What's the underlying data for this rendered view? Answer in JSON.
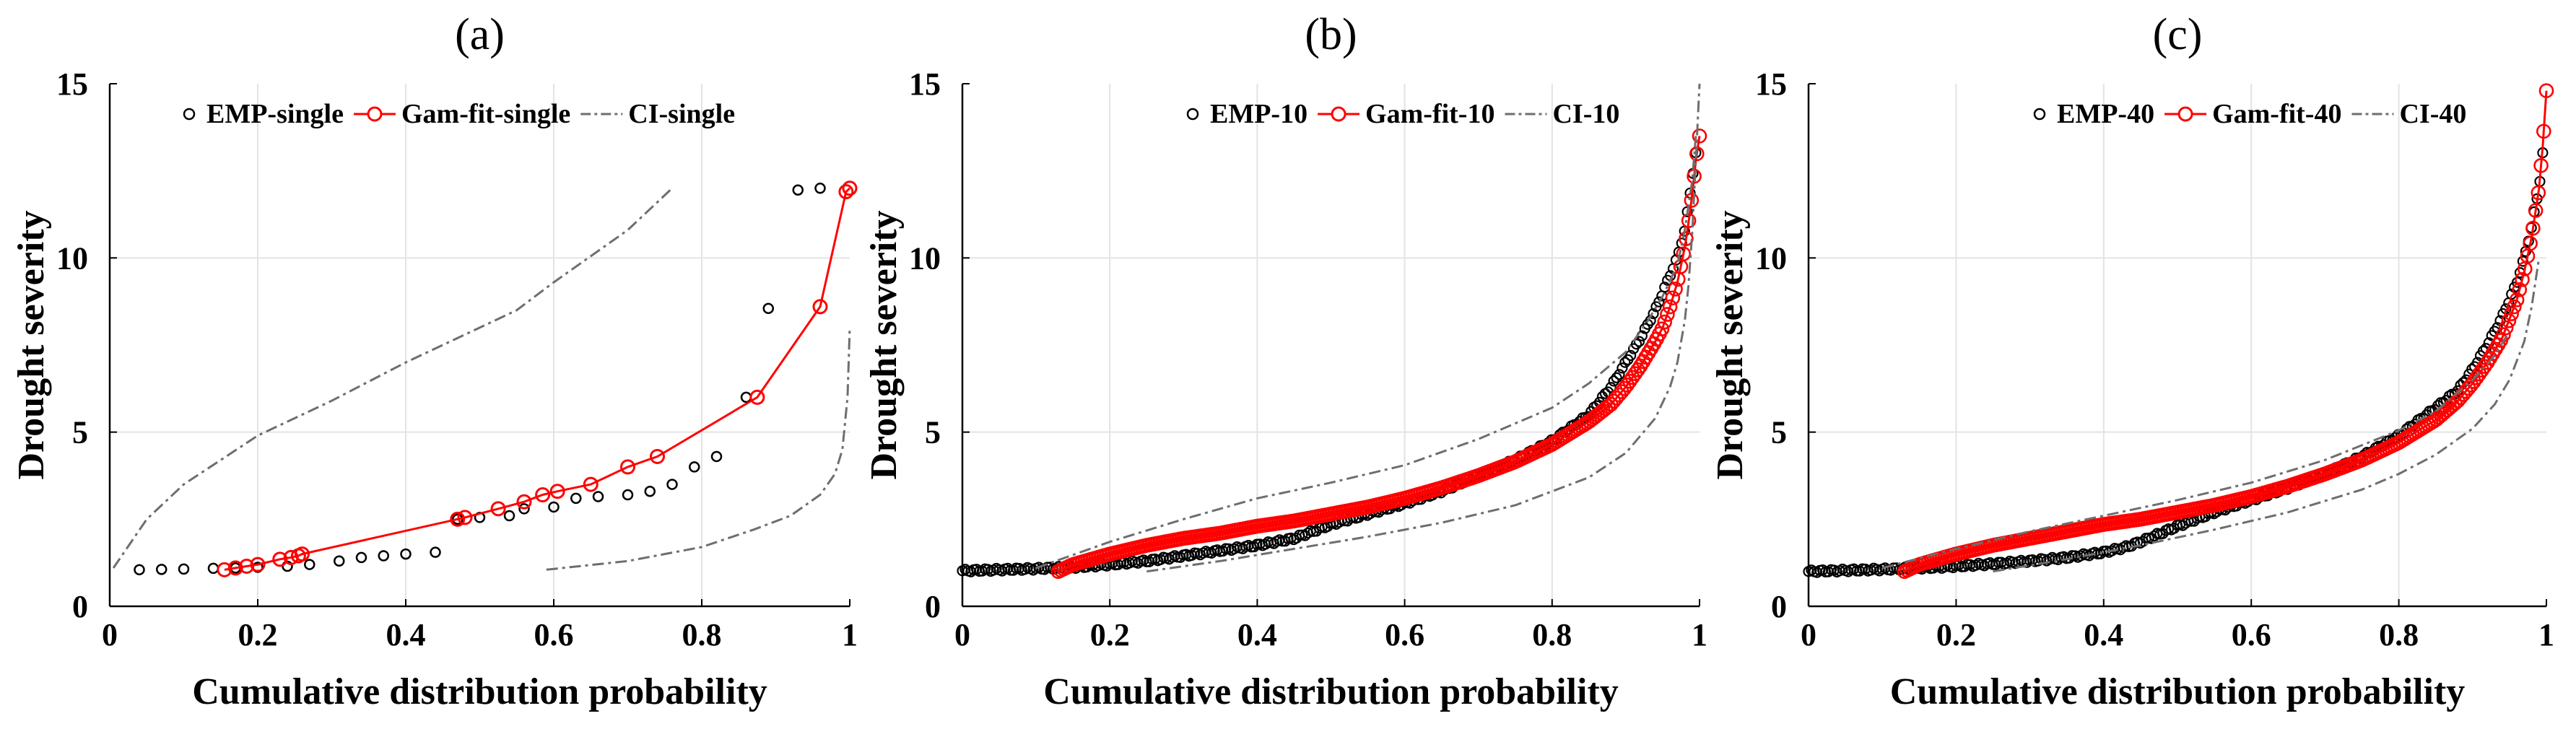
{
  "chart_data": [
    {
      "type": "line",
      "title": "(a)",
      "xlabel": "Cumulative distribution probability",
      "ylabel": "Drought severity",
      "xlim": [
        0,
        1
      ],
      "ylim": [
        0,
        15
      ],
      "xticks": [
        0,
        0.2,
        0.4,
        0.6,
        0.8,
        1
      ],
      "yticks": [
        0,
        5,
        10,
        15
      ],
      "xtick_labels": [
        "0",
        "0.2",
        "0.4",
        "0.6",
        "0.8",
        "1"
      ],
      "ytick_labels": [
        "0",
        "5",
        "10",
        "15"
      ],
      "grid": true,
      "legend": {
        "placement": "top-right",
        "labels": [
          "EMP-single",
          "Gam-fit-single",
          "CI-single"
        ]
      },
      "series": [
        {
          "name": "EMP-single",
          "style": "circles-black",
          "x": [
            0.04,
            0.07,
            0.1,
            0.14,
            0.17,
            0.2,
            0.24,
            0.27,
            0.31,
            0.34,
            0.37,
            0.4,
            0.44,
            0.47,
            0.5,
            0.54,
            0.56,
            0.6,
            0.63,
            0.66,
            0.7,
            0.73,
            0.76,
            0.79,
            0.82,
            0.86,
            0.89,
            0.93,
            0.96
          ],
          "y": [
            1.05,
            1.06,
            1.07,
            1.09,
            1.1,
            1.12,
            1.15,
            1.2,
            1.3,
            1.4,
            1.45,
            1.5,
            1.55,
            2.5,
            2.55,
            2.6,
            2.8,
            2.85,
            3.1,
            3.15,
            3.2,
            3.3,
            3.5,
            4.0,
            4.3,
            6.0,
            8.55,
            11.95,
            12.0
          ]
        },
        {
          "name": "Gam-fit-single",
          "style": "line-circles-red",
          "x": [
            0.155,
            0.17,
            0.185,
            0.2,
            0.23,
            0.245,
            0.255,
            0.26,
            0.47,
            0.48,
            0.525,
            0.56,
            0.585,
            0.605,
            0.65,
            0.7,
            0.74,
            0.875,
            0.96,
            0.995,
            1.0
          ],
          "y": [
            1.05,
            1.1,
            1.15,
            1.2,
            1.35,
            1.4,
            1.45,
            1.5,
            2.5,
            2.55,
            2.8,
            3.0,
            3.2,
            3.3,
            3.5,
            4.0,
            4.3,
            6.0,
            8.6,
            11.9,
            12.0
          ]
        },
        {
          "name": "CI-single upper",
          "style": "dashdot-gray",
          "x": [
            0.005,
            0.05,
            0.1,
            0.2,
            0.3,
            0.4,
            0.5,
            0.55,
            0.6,
            0.7,
            0.76
          ],
          "y": [
            1.1,
            2.5,
            3.5,
            4.9,
            5.9,
            7.0,
            8.0,
            8.5,
            9.3,
            10.8,
            12.0
          ]
        },
        {
          "name": "CI-single lower",
          "style": "dashdot-gray",
          "x": [
            0.59,
            0.7,
            0.8,
            0.87,
            0.92,
            0.96,
            0.98,
            0.99,
            0.997,
            1.0
          ],
          "y": [
            1.05,
            1.3,
            1.7,
            2.2,
            2.6,
            3.2,
            3.8,
            4.5,
            6.0,
            8.0
          ]
        }
      ]
    },
    {
      "type": "line",
      "title": "(b)",
      "xlabel": "Cumulative distribution probability",
      "ylabel": "Drought severity",
      "xlim": [
        0,
        1
      ],
      "ylim": [
        0,
        15
      ],
      "xticks": [
        0,
        0.2,
        0.4,
        0.6,
        0.8,
        1
      ],
      "yticks": [
        0,
        5,
        10,
        15
      ],
      "xtick_labels": [
        "0",
        "0.2",
        "0.4",
        "0.6",
        "0.8",
        "1"
      ],
      "ytick_labels": [
        "0",
        "5",
        "10",
        "15"
      ],
      "grid": true,
      "legend": {
        "placement": "top-right",
        "labels": [
          "EMP-10",
          "Gam-fit-10",
          "CI-10"
        ]
      },
      "series": [
        {
          "name": "EMP-10",
          "style": "dense-circles-black",
          "x": [
            0.0,
            0.05,
            0.1,
            0.15,
            0.2,
            0.25,
            0.3,
            0.35,
            0.4,
            0.45,
            0.5,
            0.55,
            0.6,
            0.65,
            0.7,
            0.75,
            0.8,
            0.85,
            0.88,
            0.9,
            0.92,
            0.94,
            0.96,
            0.97,
            0.98,
            0.985,
            0.99,
            0.995
          ],
          "y": [
            1.02,
            1.05,
            1.08,
            1.12,
            1.2,
            1.3,
            1.45,
            1.6,
            1.75,
            1.95,
            2.35,
            2.65,
            2.95,
            3.3,
            3.75,
            4.2,
            4.75,
            5.5,
            6.3,
            7.0,
            7.7,
            8.5,
            9.5,
            10.0,
            10.8,
            11.5,
            12.3,
            13.0
          ]
        },
        {
          "name": "Gam-fit-10",
          "style": "dense-circles-red-line",
          "x": [
            0.13,
            0.15,
            0.2,
            0.25,
            0.3,
            0.35,
            0.4,
            0.45,
            0.5,
            0.55,
            0.6,
            0.65,
            0.7,
            0.75,
            0.8,
            0.85,
            0.88,
            0.9,
            0.92,
            0.94,
            0.95,
            0.96,
            0.97,
            0.98,
            0.985,
            0.99,
            0.995,
            1.0
          ],
          "y": [
            1.0,
            1.2,
            1.5,
            1.75,
            1.95,
            2.1,
            2.3,
            2.45,
            2.65,
            2.85,
            3.1,
            3.4,
            3.75,
            4.15,
            4.65,
            5.3,
            5.8,
            6.3,
            6.9,
            7.6,
            8.0,
            8.6,
            9.3,
            10.3,
            11.0,
            11.8,
            12.8,
            13.5
          ]
        },
        {
          "name": "CI-10 upper",
          "style": "dashdot-gray",
          "x": [
            0.1,
            0.2,
            0.3,
            0.4,
            0.5,
            0.6,
            0.7,
            0.8,
            0.85,
            0.9,
            0.93,
            0.95,
            0.97,
            0.98,
            0.99,
            0.995
          ],
          "y": [
            1.1,
            1.85,
            2.5,
            3.1,
            3.55,
            4.05,
            4.8,
            5.7,
            6.4,
            7.3,
            8.2,
            8.9,
            9.8,
            10.8,
            12.2,
            13.5
          ]
        },
        {
          "name": "CI-10 lower",
          "style": "dashdot-gray",
          "x": [
            0.25,
            0.35,
            0.45,
            0.55,
            0.65,
            0.75,
            0.85,
            0.9,
            0.94,
            0.96,
            0.97,
            0.98,
            0.985,
            0.99,
            0.995,
            1.0
          ],
          "y": [
            1.0,
            1.3,
            1.65,
            2.0,
            2.4,
            2.9,
            3.7,
            4.4,
            5.4,
            6.3,
            7.0,
            8.2,
            9.2,
            10.7,
            12.8,
            15.0
          ]
        }
      ]
    },
    {
      "type": "line",
      "title": "(c)",
      "xlabel": "Cumulative distribution probability",
      "ylabel": "Drought severity",
      "xlim": [
        0,
        1
      ],
      "ylim": [
        0,
        15
      ],
      "xticks": [
        0,
        0.2,
        0.4,
        0.6,
        0.8,
        1
      ],
      "yticks": [
        0,
        5,
        10,
        15
      ],
      "xtick_labels": [
        "0",
        "0.2",
        "0.4",
        "0.6",
        "0.8",
        "1"
      ],
      "ytick_labels": [
        "0",
        "5",
        "10",
        "15"
      ],
      "grid": true,
      "legend": {
        "placement": "top-right",
        "labels": [
          "EMP-40",
          "Gam-fit-40",
          "CI-40"
        ]
      },
      "series": [
        {
          "name": "EMP-40",
          "style": "dense-circles-black",
          "x": [
            0.0,
            0.05,
            0.1,
            0.15,
            0.2,
            0.25,
            0.3,
            0.35,
            0.4,
            0.43,
            0.45,
            0.5,
            0.55,
            0.6,
            0.65,
            0.7,
            0.75,
            0.8,
            0.85,
            0.88,
            0.9,
            0.92,
            0.94,
            0.96,
            0.97,
            0.98,
            0.99,
            0.995
          ],
          "y": [
            1.0,
            1.03,
            1.06,
            1.1,
            1.15,
            1.22,
            1.3,
            1.4,
            1.55,
            1.7,
            1.85,
            2.3,
            2.7,
            3.05,
            3.4,
            3.8,
            4.3,
            4.9,
            5.7,
            6.2,
            6.8,
            7.5,
            8.3,
            9.3,
            10.0,
            10.9,
            12.0,
            13.0
          ]
        },
        {
          "name": "Gam-fit-40",
          "style": "dense-circles-red-line",
          "x": [
            0.13,
            0.15,
            0.2,
            0.25,
            0.3,
            0.35,
            0.4,
            0.45,
            0.5,
            0.55,
            0.6,
            0.65,
            0.7,
            0.75,
            0.8,
            0.85,
            0.88,
            0.9,
            0.92,
            0.94,
            0.96,
            0.97,
            0.98,
            0.99,
            0.995,
            1.0
          ],
          "y": [
            1.0,
            1.2,
            1.5,
            1.75,
            1.95,
            2.15,
            2.35,
            2.5,
            2.7,
            2.9,
            3.15,
            3.45,
            3.8,
            4.2,
            4.7,
            5.35,
            5.9,
            6.4,
            7.0,
            7.7,
            8.8,
            9.6,
            10.6,
            12.0,
            13.2,
            14.8
          ]
        },
        {
          "name": "CI-40 upper",
          "style": "dashdot-gray",
          "x": [
            0.1,
            0.2,
            0.3,
            0.4,
            0.5,
            0.6,
            0.7,
            0.8,
            0.85,
            0.9,
            0.93,
            0.95
          ],
          "y": [
            1.1,
            1.65,
            2.15,
            2.6,
            3.05,
            3.55,
            4.2,
            5.05,
            5.6,
            6.5,
            7.2,
            7.9
          ]
        },
        {
          "name": "CI-40 lower",
          "style": "dashdot-gray",
          "x": [
            0.25,
            0.35,
            0.45,
            0.55,
            0.65,
            0.75,
            0.8,
            0.85,
            0.9,
            0.93,
            0.95,
            0.97,
            0.98,
            0.99
          ],
          "y": [
            1.0,
            1.35,
            1.75,
            2.2,
            2.7,
            3.35,
            3.8,
            4.35,
            5.1,
            5.8,
            6.5,
            7.6,
            8.6,
            10.0
          ]
        }
      ]
    }
  ]
}
